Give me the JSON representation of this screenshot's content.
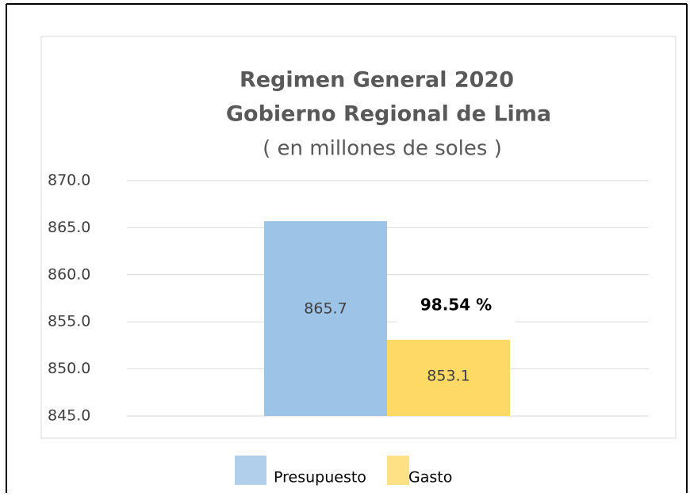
{
  "chart_data": {
    "type": "bar",
    "title": "Regimen General 2020",
    "subtitle": "Gobierno Regional de Lima",
    "y_label": "( en millones de soles )",
    "categories": [
      null
    ],
    "series": [
      {
        "name": "Presupuesto",
        "color": "#9dc3e6",
        "values": [
          865.7
        ]
      },
      {
        "name": "Gasto",
        "color": "#ffd966",
        "values": [
          853.1
        ]
      }
    ],
    "annotations": [
      "98.54 %"
    ],
    "ylim": [
      845,
      870
    ],
    "yticks": [
      {
        "value": 845,
        "label": "845.0"
      },
      {
        "value": 850,
        "label": "850.0"
      },
      {
        "value": 855,
        "label": "855.0"
      },
      {
        "value": 860,
        "label": "860.0"
      },
      {
        "value": 865,
        "label": "865.0"
      },
      {
        "value": 870,
        "label": "870.0"
      }
    ],
    "grid": true,
    "legend": "bottom"
  }
}
